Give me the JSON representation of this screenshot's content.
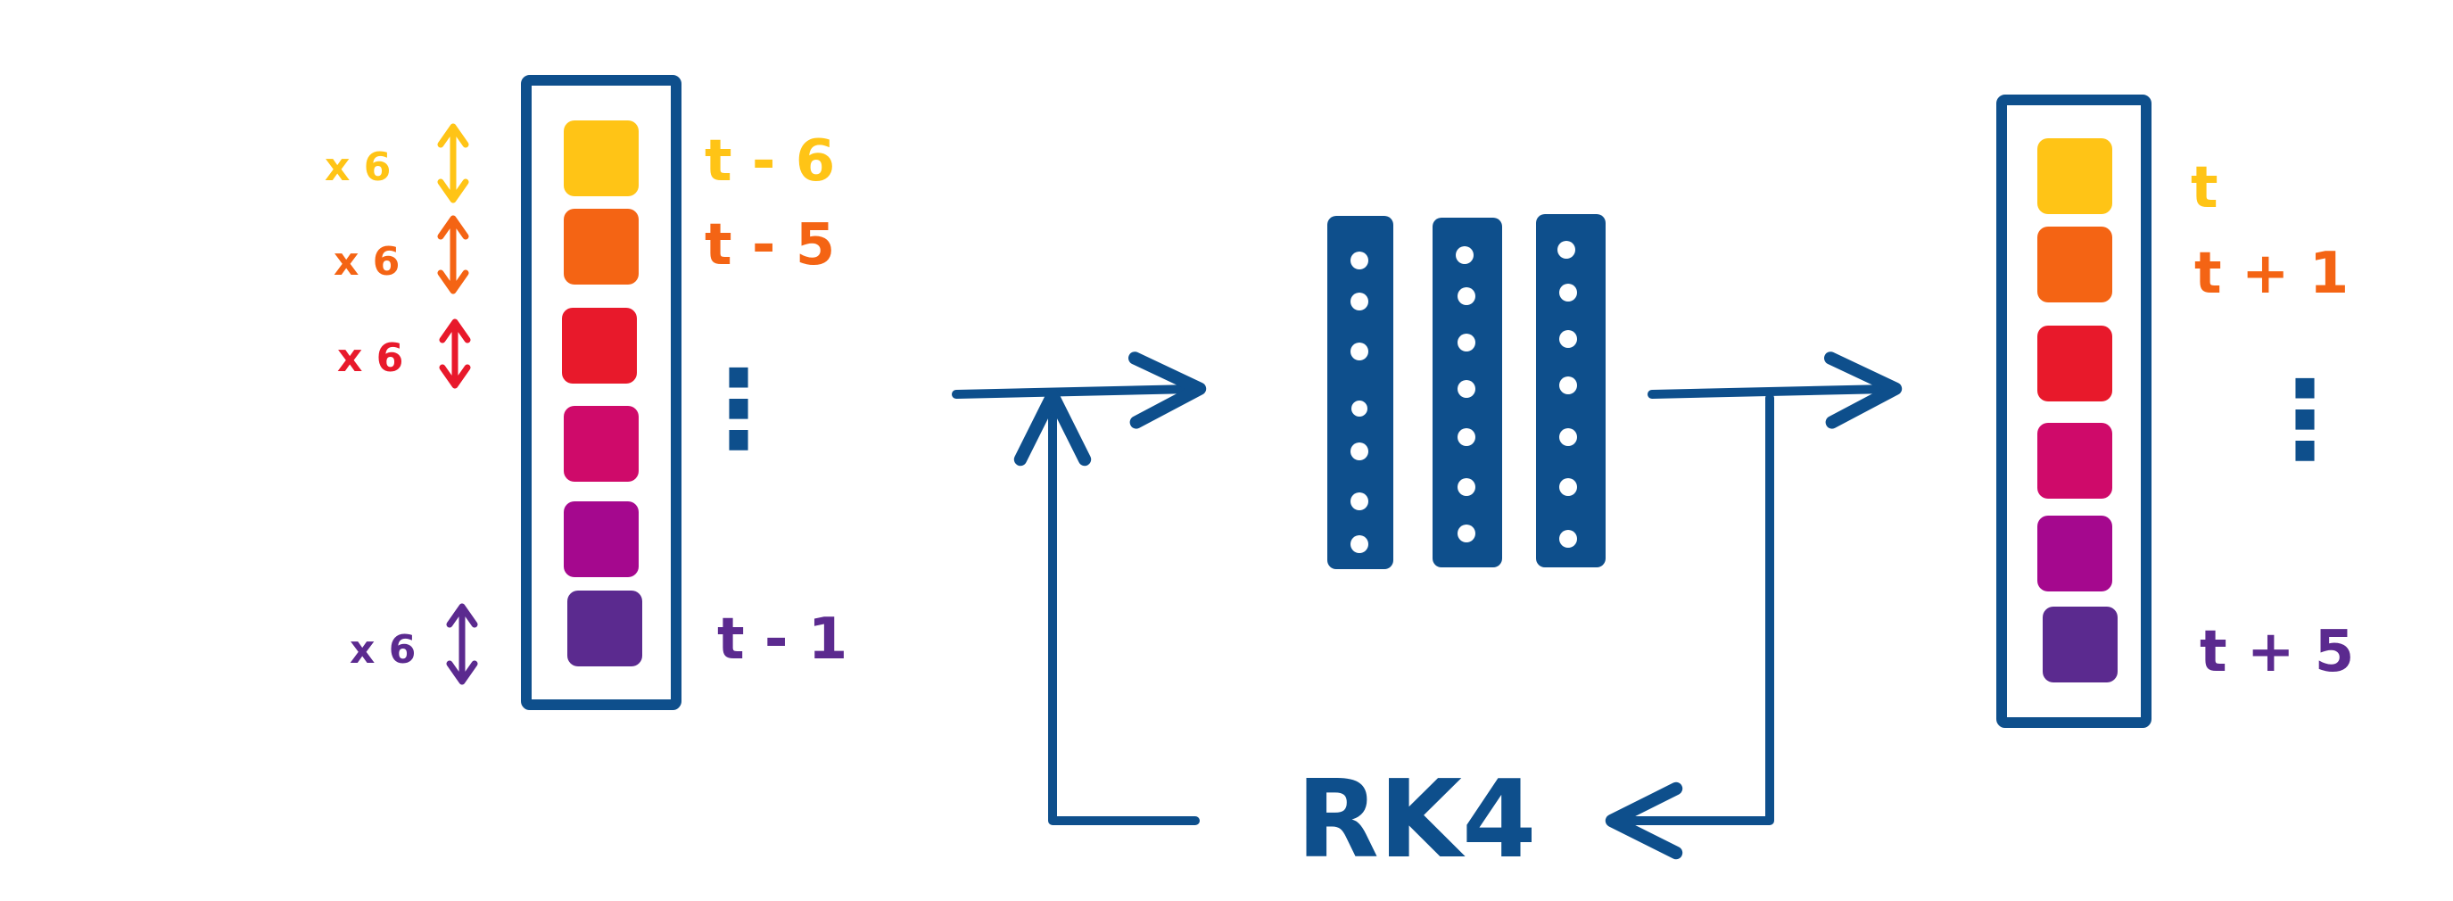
{
  "colors": {
    "stroke": "#0e4f8c",
    "node": "#0e4f8c",
    "dot": "#ffffff",
    "sequence": [
      "#ffc416",
      "#f46414",
      "#e8192b",
      "#cf0a6a",
      "#a5088e",
      "#5b2a8f"
    ]
  },
  "input_stack": {
    "multiplier_labels": [
      "x 6",
      "x 6",
      "x 6",
      "x 6"
    ],
    "time_labels": {
      "first": "t - 6",
      "second": "t - 5",
      "last": "t - 1"
    },
    "ellipsis": "⋮"
  },
  "network": {
    "columns": 3,
    "dots_per_column": 7
  },
  "output_stack": {
    "time_labels": {
      "first": "t",
      "second": "t + 1",
      "last": "t + 5"
    },
    "ellipsis": "⋮"
  },
  "integrator": {
    "label": "RK4"
  }
}
